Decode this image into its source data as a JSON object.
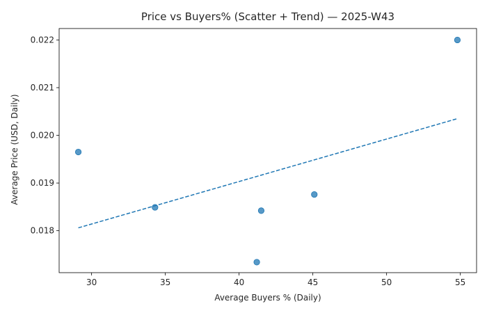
{
  "chart_data": {
    "type": "scatter",
    "title": "Price vs Buyers% (Scatter + Trend) — 2025-W43",
    "xlabel": "Average Buyers % (Daily)",
    "ylabel": "Average Price (USD, Daily)",
    "xlim": [
      27.8,
      56.1
    ],
    "ylim": [
      0.01712,
      0.02224
    ],
    "x_ticks": [
      30,
      35,
      40,
      45,
      50,
      55
    ],
    "y_ticks": [
      0.018,
      0.019,
      0.02,
      0.021,
      0.022
    ],
    "x_tick_labels": [
      "30",
      "35",
      "40",
      "45",
      "50",
      "55"
    ],
    "y_tick_labels": [
      "0.018",
      "0.019",
      "0.020",
      "0.021",
      "0.022"
    ],
    "grid": false,
    "points": [
      {
        "x": 29.1,
        "y": 0.01965
      },
      {
        "x": 34.3,
        "y": 0.01849
      },
      {
        "x": 41.2,
        "y": 0.01734
      },
      {
        "x": 41.5,
        "y": 0.01842
      },
      {
        "x": 45.1,
        "y": 0.01876
      },
      {
        "x": 54.8,
        "y": 0.022
      }
    ],
    "trend": {
      "style": "dashed",
      "x": [
        29.1,
        54.8
      ],
      "y": [
        0.01806,
        0.02035
      ]
    },
    "colors": {
      "points": "#1f77b4",
      "trend": "#1f77b4",
      "axes": "#000000"
    }
  }
}
